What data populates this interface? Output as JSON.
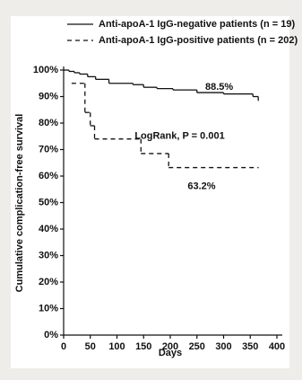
{
  "chart_data": {
    "type": "line",
    "step": "post",
    "xlabel": "Days",
    "ylabel": "Cumulative complication-free survival",
    "xlim": [
      0,
      400
    ],
    "xticks": [
      0,
      50,
      100,
      150,
      200,
      250,
      300,
      350,
      400
    ],
    "ylim": [
      0,
      100
    ],
    "yticks": [
      {
        "value": 0,
        "label": "0%"
      },
      {
        "value": 10,
        "label": "10%"
      },
      {
        "value": 20,
        "label": "20%"
      },
      {
        "value": 30,
        "label": "30%"
      },
      {
        "value": 40,
        "label": "40%"
      },
      {
        "value": 50,
        "label": "50%"
      },
      {
        "value": 60,
        "label": "60%"
      },
      {
        "value": 70,
        "label": "70%"
      },
      {
        "value": 80,
        "label": "80%"
      },
      {
        "value": 90,
        "label": "90%"
      },
      {
        "value": 100,
        "label": "100%"
      }
    ],
    "series": [
      {
        "name": "Anti-apoA-1 IgG-negative patients (n = 19)",
        "color": "#111111",
        "dash": "solid",
        "x": [
          0,
          10,
          20,
          30,
          45,
          60,
          85,
          130,
          150,
          175,
          205,
          250,
          300,
          355,
          365
        ],
        "values": [
          100,
          99.5,
          99,
          98.5,
          97.5,
          96.5,
          95,
          94.5,
          93.5,
          93,
          92.5,
          91.5,
          91,
          90,
          88.5
        ]
      },
      {
        "name": "Anti-apoA-1 IgG-positive patients (n = 202)",
        "color": "#111111",
        "dash": "dashed",
        "x": [
          15,
          40,
          50,
          58,
          145,
          197,
          365
        ],
        "values": [
          95,
          84,
          79,
          74,
          68.5,
          63.2,
          63.2
        ]
      }
    ],
    "annotations": [
      {
        "text": "88.5%",
        "x": 318,
        "y": 93.5
      },
      {
        "text": "LogRank, P = 0.001",
        "x": 302,
        "y": 75
      },
      {
        "text": "63.2%",
        "x": 285,
        "y": 56
      }
    ]
  }
}
